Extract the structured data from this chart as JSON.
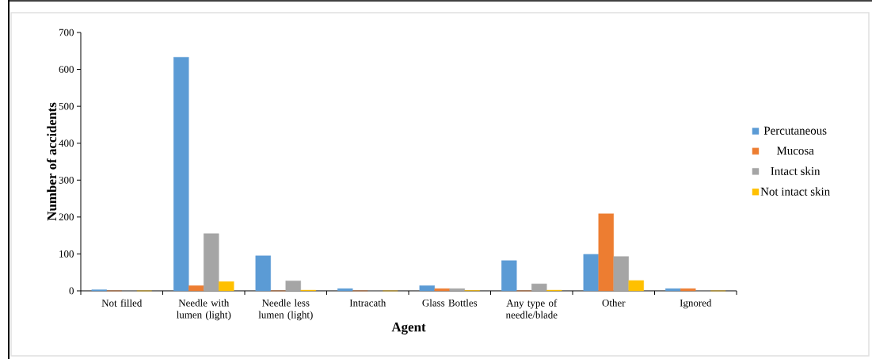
{
  "chart_data": {
    "type": "bar",
    "xlabel": "Agent",
    "ylabel": "Number of accidents",
    "categories": [
      "Not filled",
      "Needle with lumen (light)",
      "Needle less lumen (light)",
      "Intracath",
      "Glass Bottles",
      "Any type of needle/blade",
      "Other",
      "Ignored"
    ],
    "series": [
      {
        "name": "Percutaneous",
        "color": "#5b9bd5",
        "values": [
          3,
          633,
          95,
          6,
          14,
          82,
          99,
          6
        ]
      },
      {
        "name": "Mucosa",
        "color": "#ed7d31",
        "values": [
          0,
          14,
          0,
          0,
          6,
          0,
          209,
          6
        ]
      },
      {
        "name": "Intact skin",
        "color": "#a5a5a5",
        "values": [
          0,
          155,
          27,
          0,
          6,
          19,
          93,
          0
        ]
      },
      {
        "name": "Not intact skin",
        "color": "#ffc000",
        "values": [
          0,
          25,
          2,
          0,
          1,
          2,
          28,
          0
        ]
      }
    ],
    "ylim": [
      0,
      700
    ],
    "yticks": [
      0,
      100,
      200,
      300,
      400,
      500,
      600,
      700
    ],
    "grid": false,
    "legend": "right"
  }
}
